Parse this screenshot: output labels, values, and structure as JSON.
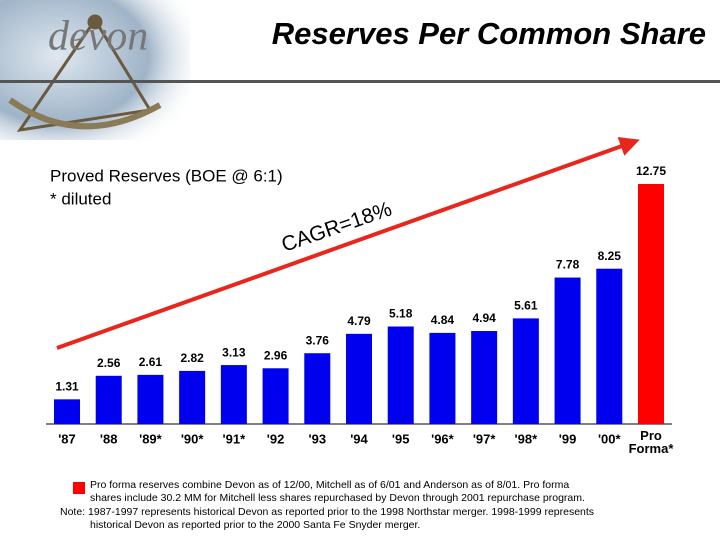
{
  "logo": "devon",
  "chart_data": {
    "type": "bar",
    "title": "Reserves Per Common Share",
    "subtitle": "Proved Reserves (BOE @ 6:1)",
    "footnote_marker": "* diluted",
    "annotation": "CAGR=18%",
    "categories": [
      "'87",
      "'88",
      "'89*",
      "'90*",
      "'91*",
      "'92",
      "'93",
      "'94",
      "'95",
      "'96*",
      "'97*",
      "'98*",
      "'99",
      "'00*",
      "Pro Forma*"
    ],
    "values": [
      1.31,
      2.56,
      2.61,
      2.82,
      3.13,
      2.96,
      3.76,
      4.79,
      5.18,
      4.84,
      4.94,
      5.61,
      7.78,
      8.25,
      12.75
    ],
    "colors": [
      "#0000ee",
      "#0000ee",
      "#0000ee",
      "#0000ee",
      "#0000ee",
      "#0000ee",
      "#0000ee",
      "#0000ee",
      "#0000ee",
      "#0000ee",
      "#0000ee",
      "#0000ee",
      "#0000ee",
      "#0000ee",
      "#ff0000"
    ],
    "legend_note": [
      "Pro forma reserves combine Devon as of 12/00, Mitchell as of 6/01 and Anderson as of 8/01.  Pro forma",
      "shares include 30.2 MM for Mitchell less shares repurchased by Devon through 2001 repurchase program."
    ],
    "note": [
      "Note: 1987-1997 represents historical Devon as reported prior to the 1998 Northstar merger.  1998-1999 represents",
      "historical Devon as reported prior to the 2000 Santa Fe Snyder merger."
    ]
  }
}
